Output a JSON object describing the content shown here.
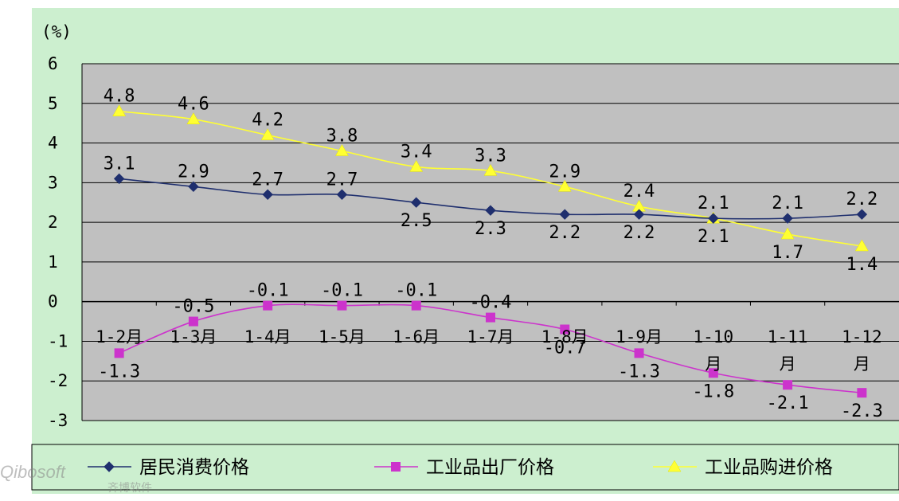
{
  "chart_data": {
    "type": "line",
    "unit_label": "(%)",
    "categories": [
      [
        "1-2月"
      ],
      [
        "1-3月"
      ],
      [
        "1-4月"
      ],
      [
        "1-5月"
      ],
      [
        "1-6月"
      ],
      [
        "1-7月"
      ],
      [
        "1-8月"
      ],
      [
        "1-9月"
      ],
      [
        "1-10",
        "月"
      ],
      [
        "1-11",
        "月"
      ],
      [
        "1-12",
        "月"
      ]
    ],
    "ylim": [
      -3,
      6
    ],
    "yticks": [
      "6",
      "5",
      "4",
      "3",
      "2",
      "1",
      "0",
      "-1",
      "-2",
      "-3"
    ],
    "grid": true,
    "legend_position": "bottom",
    "series": [
      {
        "name": "居民消费价格",
        "color": "#1F2F6E",
        "marker": "diamond",
        "values": [
          3.1,
          2.9,
          2.7,
          2.7,
          2.5,
          2.3,
          2.2,
          2.2,
          2.1,
          2.1,
          2.2
        ],
        "labels": [
          "3.1",
          "2.9",
          "2.7",
          "2.7",
          "2.5",
          "2.3",
          "2.2",
          "2.2",
          "2.1",
          "2.1",
          "2.2"
        ],
        "label_pos": [
          "above",
          "above",
          "above",
          "above",
          "below",
          "below",
          "below",
          "below",
          "above",
          "above",
          "above"
        ]
      },
      {
        "name": "工业品出厂价格",
        "color": "#CC33CC",
        "marker": "square",
        "values": [
          -1.3,
          -0.5,
          -0.1,
          -0.1,
          -0.1,
          -0.4,
          -0.7,
          -1.3,
          -1.8,
          -2.1,
          -2.3
        ],
        "labels": [
          "-1.3",
          "-0.5",
          "-0.1",
          "-0.1",
          "-0.1",
          "-0.4",
          "-0.7",
          "-1.3",
          "-1.8",
          "-2.1",
          "-2.3"
        ],
        "label_pos": [
          "below",
          "above",
          "above",
          "above",
          "above",
          "above",
          "below",
          "below",
          "below",
          "below",
          "below"
        ]
      },
      {
        "name": "工业品购进价格",
        "color": "#FFFF33",
        "marker": "triangle",
        "values": [
          4.8,
          4.6,
          4.2,
          3.8,
          3.4,
          3.3,
          2.9,
          2.4,
          2.1,
          1.7,
          1.4
        ],
        "labels": [
          "4.8",
          "4.6",
          "4.2",
          "3.8",
          "3.4",
          "3.3",
          "2.9",
          "2.4",
          "2.1",
          "1.7",
          "1.4"
        ],
        "label_pos": [
          "above",
          "above",
          "above",
          "above",
          "above",
          "above",
          "above",
          "above",
          "below",
          "below",
          "below"
        ]
      }
    ],
    "watermark": "Qibosoft 齐博软件"
  }
}
